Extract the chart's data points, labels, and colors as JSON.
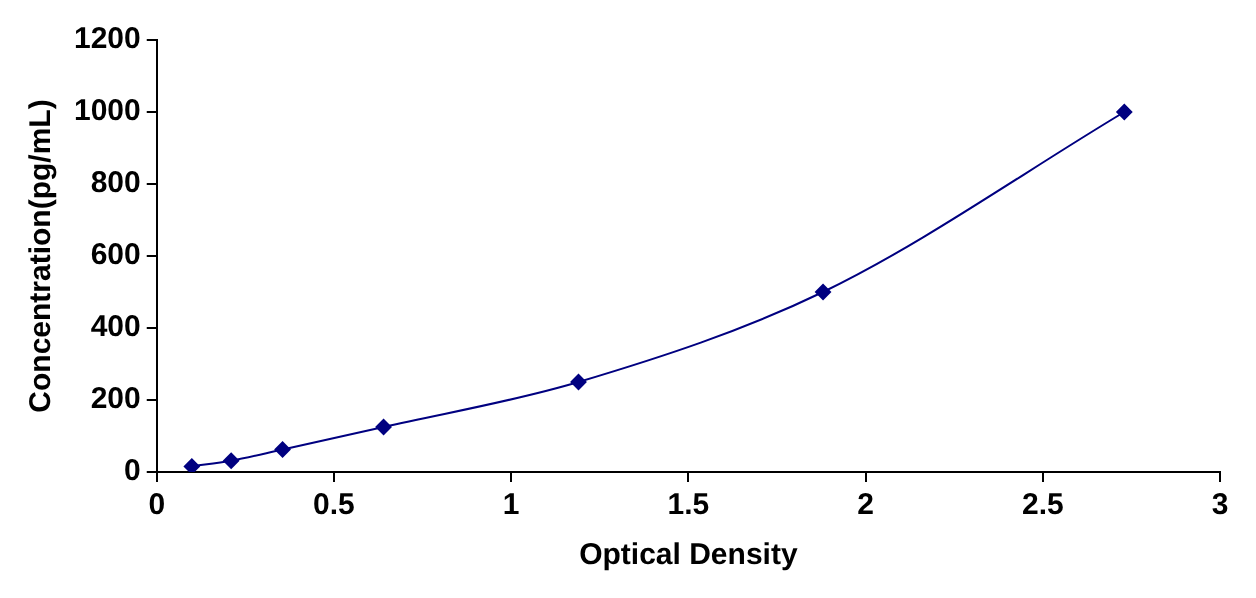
{
  "chart_data": {
    "type": "line",
    "xlabel": "Optical Density",
    "ylabel": "Concentration(pg/mL)",
    "x": [
      0.099,
      0.21,
      0.355,
      0.64,
      1.19,
      1.88,
      2.73
    ],
    "series": [
      {
        "color": "#000080",
        "values": [
          15.6,
          31.25,
          62.5,
          125,
          250,
          500,
          1000
        ]
      }
    ],
    "xlim": [
      0,
      3
    ],
    "xticks": [
      0,
      0.5,
      1,
      1.5,
      2,
      2.5,
      3
    ],
    "ylim": [
      0,
      1200
    ],
    "yticks": [
      0,
      200,
      400,
      600,
      800,
      1000,
      1200
    ],
    "grid": false,
    "legend": false,
    "marker": "diamond",
    "line_style": "solid"
  }
}
